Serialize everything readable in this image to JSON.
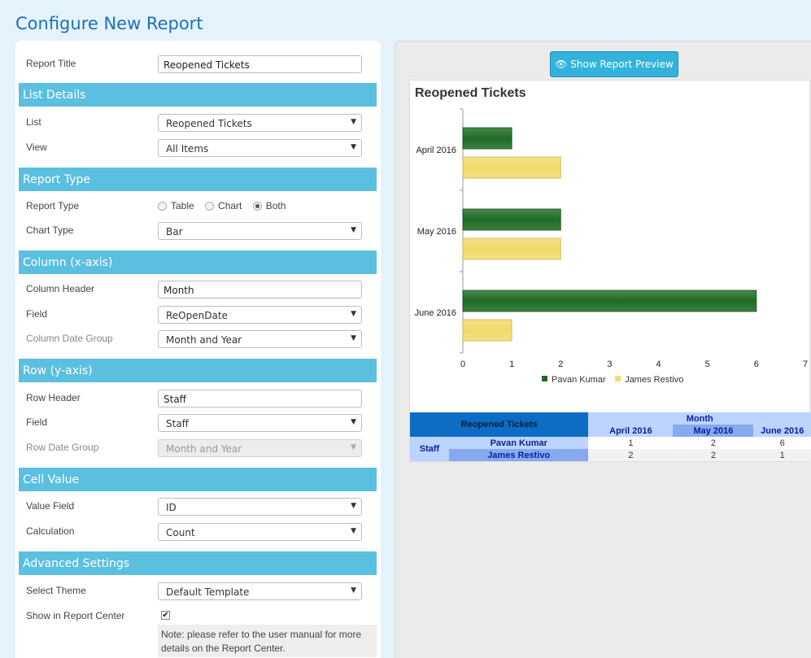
{
  "page": {
    "title": "Configure New Report"
  },
  "form": {
    "report_title": {
      "label": "Report Title",
      "value": "Reopened Tickets"
    },
    "list_details": {
      "header": "List Details",
      "list": {
        "label": "List",
        "value": "Reopened Tickets"
      },
      "view": {
        "label": "View",
        "value": "All Items"
      }
    },
    "report_type": {
      "header": "Report Type",
      "type": {
        "label": "Report Type",
        "options": [
          "Table",
          "Chart",
          "Both"
        ],
        "selected": "Both"
      },
      "chart_type": {
        "label": "Chart Type",
        "value": "Bar"
      }
    },
    "column": {
      "header": "Column (x-axis)",
      "column_header": {
        "label": "Column Header",
        "value": "Month"
      },
      "field": {
        "label": "Field",
        "value": "ReOpenDate"
      },
      "date_group": {
        "label": "Column Date Group",
        "value": "Month and Year"
      }
    },
    "row": {
      "header": "Row (y-axis)",
      "row_header": {
        "label": "Row Header",
        "value": "Staff"
      },
      "field": {
        "label": "Field",
        "value": "Staff"
      },
      "date_group": {
        "label": "Row Date Group",
        "value": "Month and Year"
      }
    },
    "cell_value": {
      "header": "Cell Value",
      "value_field": {
        "label": "Value Field",
        "value": "ID"
      },
      "calculation": {
        "label": "Calculation",
        "value": "Count"
      }
    },
    "advanced": {
      "header": "Advanced Settings",
      "theme": {
        "label": "Select Theme",
        "value": "Default Template"
      },
      "show_in_center": {
        "label": "Show in Report Center",
        "checked": true,
        "check_glyph": "✔"
      },
      "note": "Note: please refer to the user manual for more details on the Report Center."
    }
  },
  "preview": {
    "button_label": "Show Report Preview",
    "chart_title": "Reopened Tickets",
    "table": {
      "corner": "Reopened Tickets",
      "column_header": "Month",
      "months": [
        "April 2016",
        "May 2016",
        "June 2016"
      ],
      "row_header": "Staff",
      "rows": [
        {
          "name": "Pavan Kumar",
          "values": [
            "1",
            "2",
            "6"
          ]
        },
        {
          "name": "James Restivo",
          "values": [
            "2",
            "2",
            "1"
          ]
        }
      ]
    }
  },
  "chart_data": {
    "type": "bar",
    "orientation": "horizontal",
    "title": "Reopened Tickets",
    "categories": [
      "April 2016",
      "May 2016",
      "June 2016"
    ],
    "series": [
      {
        "name": "Pavan Kumar",
        "values": [
          1,
          2,
          6
        ],
        "color": "#1e6b24"
      },
      {
        "name": "James Restivo",
        "values": [
          2,
          2,
          1
        ],
        "color": "#f2da6b"
      }
    ],
    "xlim": [
      0,
      7
    ],
    "xticks": [
      0,
      1,
      2,
      3,
      4,
      5,
      6,
      7
    ],
    "legend": "bottom"
  }
}
